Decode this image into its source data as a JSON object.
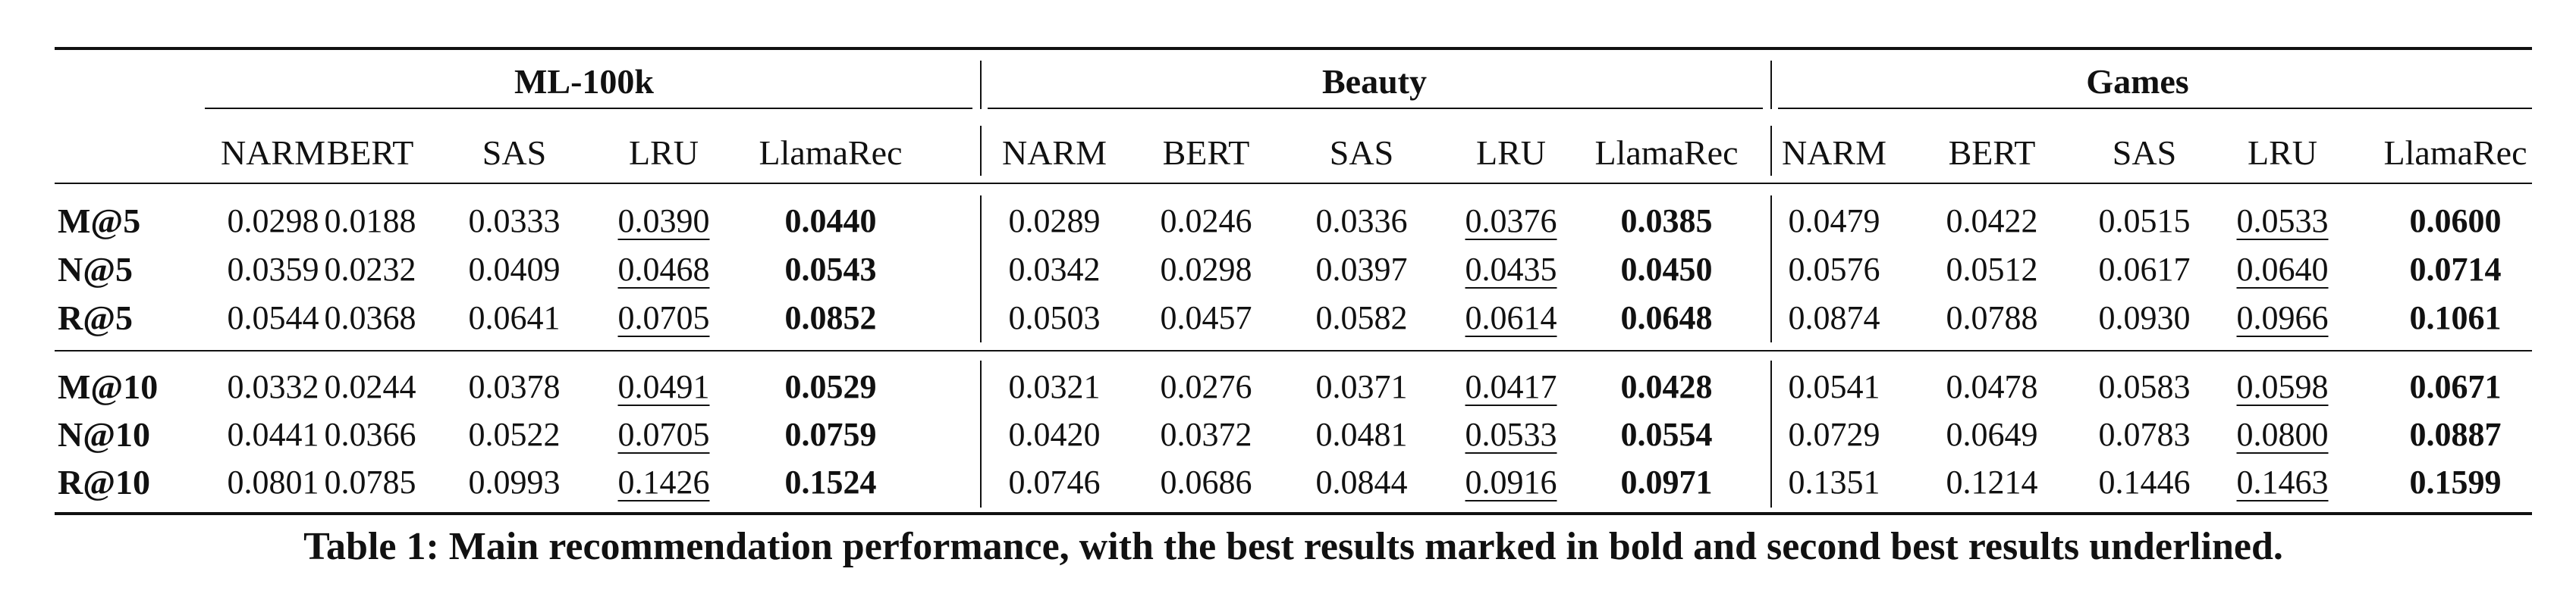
{
  "table": {
    "groups": [
      "ML-100k",
      "Beauty",
      "Games"
    ],
    "models": [
      "NARM",
      "BERT",
      "SAS",
      "LRU",
      "LlamaRec"
    ],
    "row_blocks": [
      {
        "rows": [
          {
            "label": "M@5",
            "values": [
              "0.0298",
              "0.0188",
              "0.0333",
              "0.0390",
              "0.0440",
              "0.0289",
              "0.0246",
              "0.0336",
              "0.0376",
              "0.0385",
              "0.0479",
              "0.0422",
              "0.0515",
              "0.0533",
              "0.0600"
            ]
          },
          {
            "label": "N@5",
            "values": [
              "0.0359",
              "0.0232",
              "0.0409",
              "0.0468",
              "0.0543",
              "0.0342",
              "0.0298",
              "0.0397",
              "0.0435",
              "0.0450",
              "0.0576",
              "0.0512",
              "0.0617",
              "0.0640",
              "0.0714"
            ]
          },
          {
            "label": "R@5",
            "values": [
              "0.0544",
              "0.0368",
              "0.0641",
              "0.0705",
              "0.0852",
              "0.0503",
              "0.0457",
              "0.0582",
              "0.0614",
              "0.0648",
              "0.0874",
              "0.0788",
              "0.0930",
              "0.0966",
              "0.1061"
            ]
          }
        ]
      },
      {
        "rows": [
          {
            "label": "M@10",
            "values": [
              "0.0332",
              "0.0244",
              "0.0378",
              "0.0491",
              "0.0529",
              "0.0321",
              "0.0276",
              "0.0371",
              "0.0417",
              "0.0428",
              "0.0541",
              "0.0478",
              "0.0583",
              "0.0598",
              "0.0671"
            ]
          },
          {
            "label": "N@10",
            "values": [
              "0.0441",
              "0.0366",
              "0.0522",
              "0.0705",
              "0.0759",
              "0.0420",
              "0.0372",
              "0.0481",
              "0.0533",
              "0.0554",
              "0.0729",
              "0.0649",
              "0.0783",
              "0.0800",
              "0.0887"
            ]
          },
          {
            "label": "R@10",
            "values": [
              "0.0801",
              "0.0785",
              "0.0993",
              "0.1426",
              "0.1524",
              "0.0746",
              "0.0686",
              "0.0844",
              "0.0916",
              "0.0971",
              "0.1351",
              "0.1214",
              "0.1446",
              "0.1463",
              "0.1599"
            ]
          }
        ]
      }
    ],
    "best_model": "LlamaRec",
    "second_best_model": "LRU"
  },
  "caption": "Table 1: Main recommendation performance, with the best results marked in bold and second best results underlined."
}
